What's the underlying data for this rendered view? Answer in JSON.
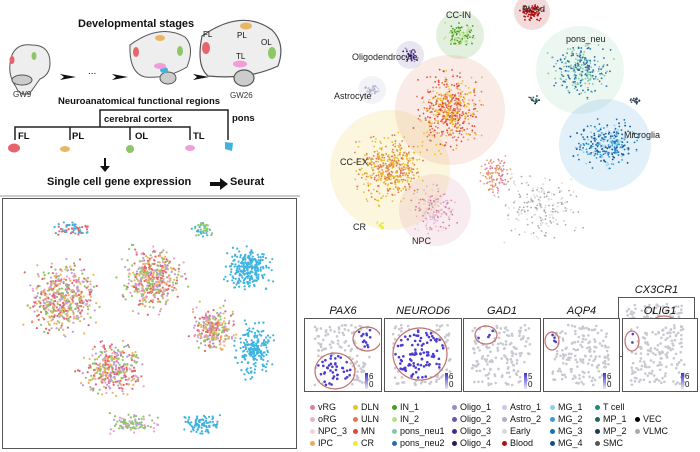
{
  "schematic": {
    "title_stages": "Developmental stages",
    "gw_start": "GW9",
    "gw_end": "GW26",
    "brain_labels": [
      "FL",
      "PL",
      "OL",
      "TL"
    ],
    "ellipsis": "...",
    "title_regions": "Neuroanatomical functional regions",
    "cerebral_cortex": "cerebral cortex",
    "pons": "pons",
    "regions": [
      {
        "label": "FL",
        "color": "#e8646c"
      },
      {
        "label": "PL",
        "color": "#e8b766"
      },
      {
        "label": "OL",
        "color": "#8cc665"
      },
      {
        "label": "TL",
        "color": "#ee9fd8"
      },
      {
        "label": "pons",
        "color": "#3fb3e0"
      }
    ],
    "pipeline_step": "Single cell gene expression",
    "pipeline_tool": "Seurat"
  },
  "tsne_clusters": [
    "CC-IN",
    "Blood",
    "pons_neu",
    "Oligodendrocyte",
    "Astrocyte",
    "Microglia",
    "CC-EX",
    "CR",
    "NPC"
  ],
  "feature_plots": [
    {
      "gene": "CX3CR1",
      "max": "6",
      "min": "0"
    },
    {
      "gene": "PAX6",
      "max": "6",
      "min": "0"
    },
    {
      "gene": "NEUROD6",
      "max": "6",
      "min": "0"
    },
    {
      "gene": "GAD1",
      "max": "5",
      "min": "0"
    },
    {
      "gene": "AQP4",
      "max": "6",
      "min": "0"
    },
    {
      "gene": "OLIG1",
      "max": "6",
      "min": "0"
    }
  ],
  "legend": [
    {
      "label": "vRG",
      "color": "#d9809f"
    },
    {
      "label": "oRG",
      "color": "#e0b8cb"
    },
    {
      "label": "NPC_3",
      "color": "#f0d3de"
    },
    {
      "label": "IPC",
      "color": "#e8a86a"
    },
    {
      "label": "DLN",
      "color": "#e8c02a"
    },
    {
      "label": "ULN",
      "color": "#e0785a"
    },
    {
      "label": "MN",
      "color": "#e0463a"
    },
    {
      "label": "CR",
      "color": "#e6ee3a"
    },
    {
      "label": "IN_1",
      "color": "#4a9a2a"
    },
    {
      "label": "IN_2",
      "color": "#b8e08a"
    },
    {
      "label": "pons_neu1",
      "color": "#82c8a8"
    },
    {
      "label": "pons_neu2",
      "color": "#2a70a8"
    },
    {
      "label": "Oligo_1",
      "color": "#9a88c8"
    },
    {
      "label": "Oligo_2",
      "color": "#6a58a8"
    },
    {
      "label": "Oligo_3",
      "color": "#4a2a88"
    },
    {
      "label": "Oligo_4",
      "color": "#2a1a58"
    },
    {
      "label": "Astro_1",
      "color": "#c8c8e8"
    },
    {
      "label": "Astro_2",
      "color": "#b0aec8"
    },
    {
      "label": "Early",
      "color": "#d8d8d8"
    },
    {
      "label": "Blood",
      "color": "#b01010"
    },
    {
      "label": "MG_1",
      "color": "#88d0e8"
    },
    {
      "label": "MG_2",
      "color": "#3a98d8"
    },
    {
      "label": "MG_3",
      "color": "#1a70b0"
    },
    {
      "label": "MG_4",
      "color": "#1a4a88"
    },
    {
      "label": "T cell",
      "color": "#1a8a7a"
    },
    {
      "label": "MP_1",
      "color": "#1a6a5a"
    },
    {
      "label": "MP_2",
      "color": "#1a3a5a"
    },
    {
      "label": "SMC",
      "color": "#555555"
    },
    {
      "label": "VEC",
      "color": "#000000"
    },
    {
      "label": "VLMC",
      "color": "#aaaaaa"
    }
  ]
}
